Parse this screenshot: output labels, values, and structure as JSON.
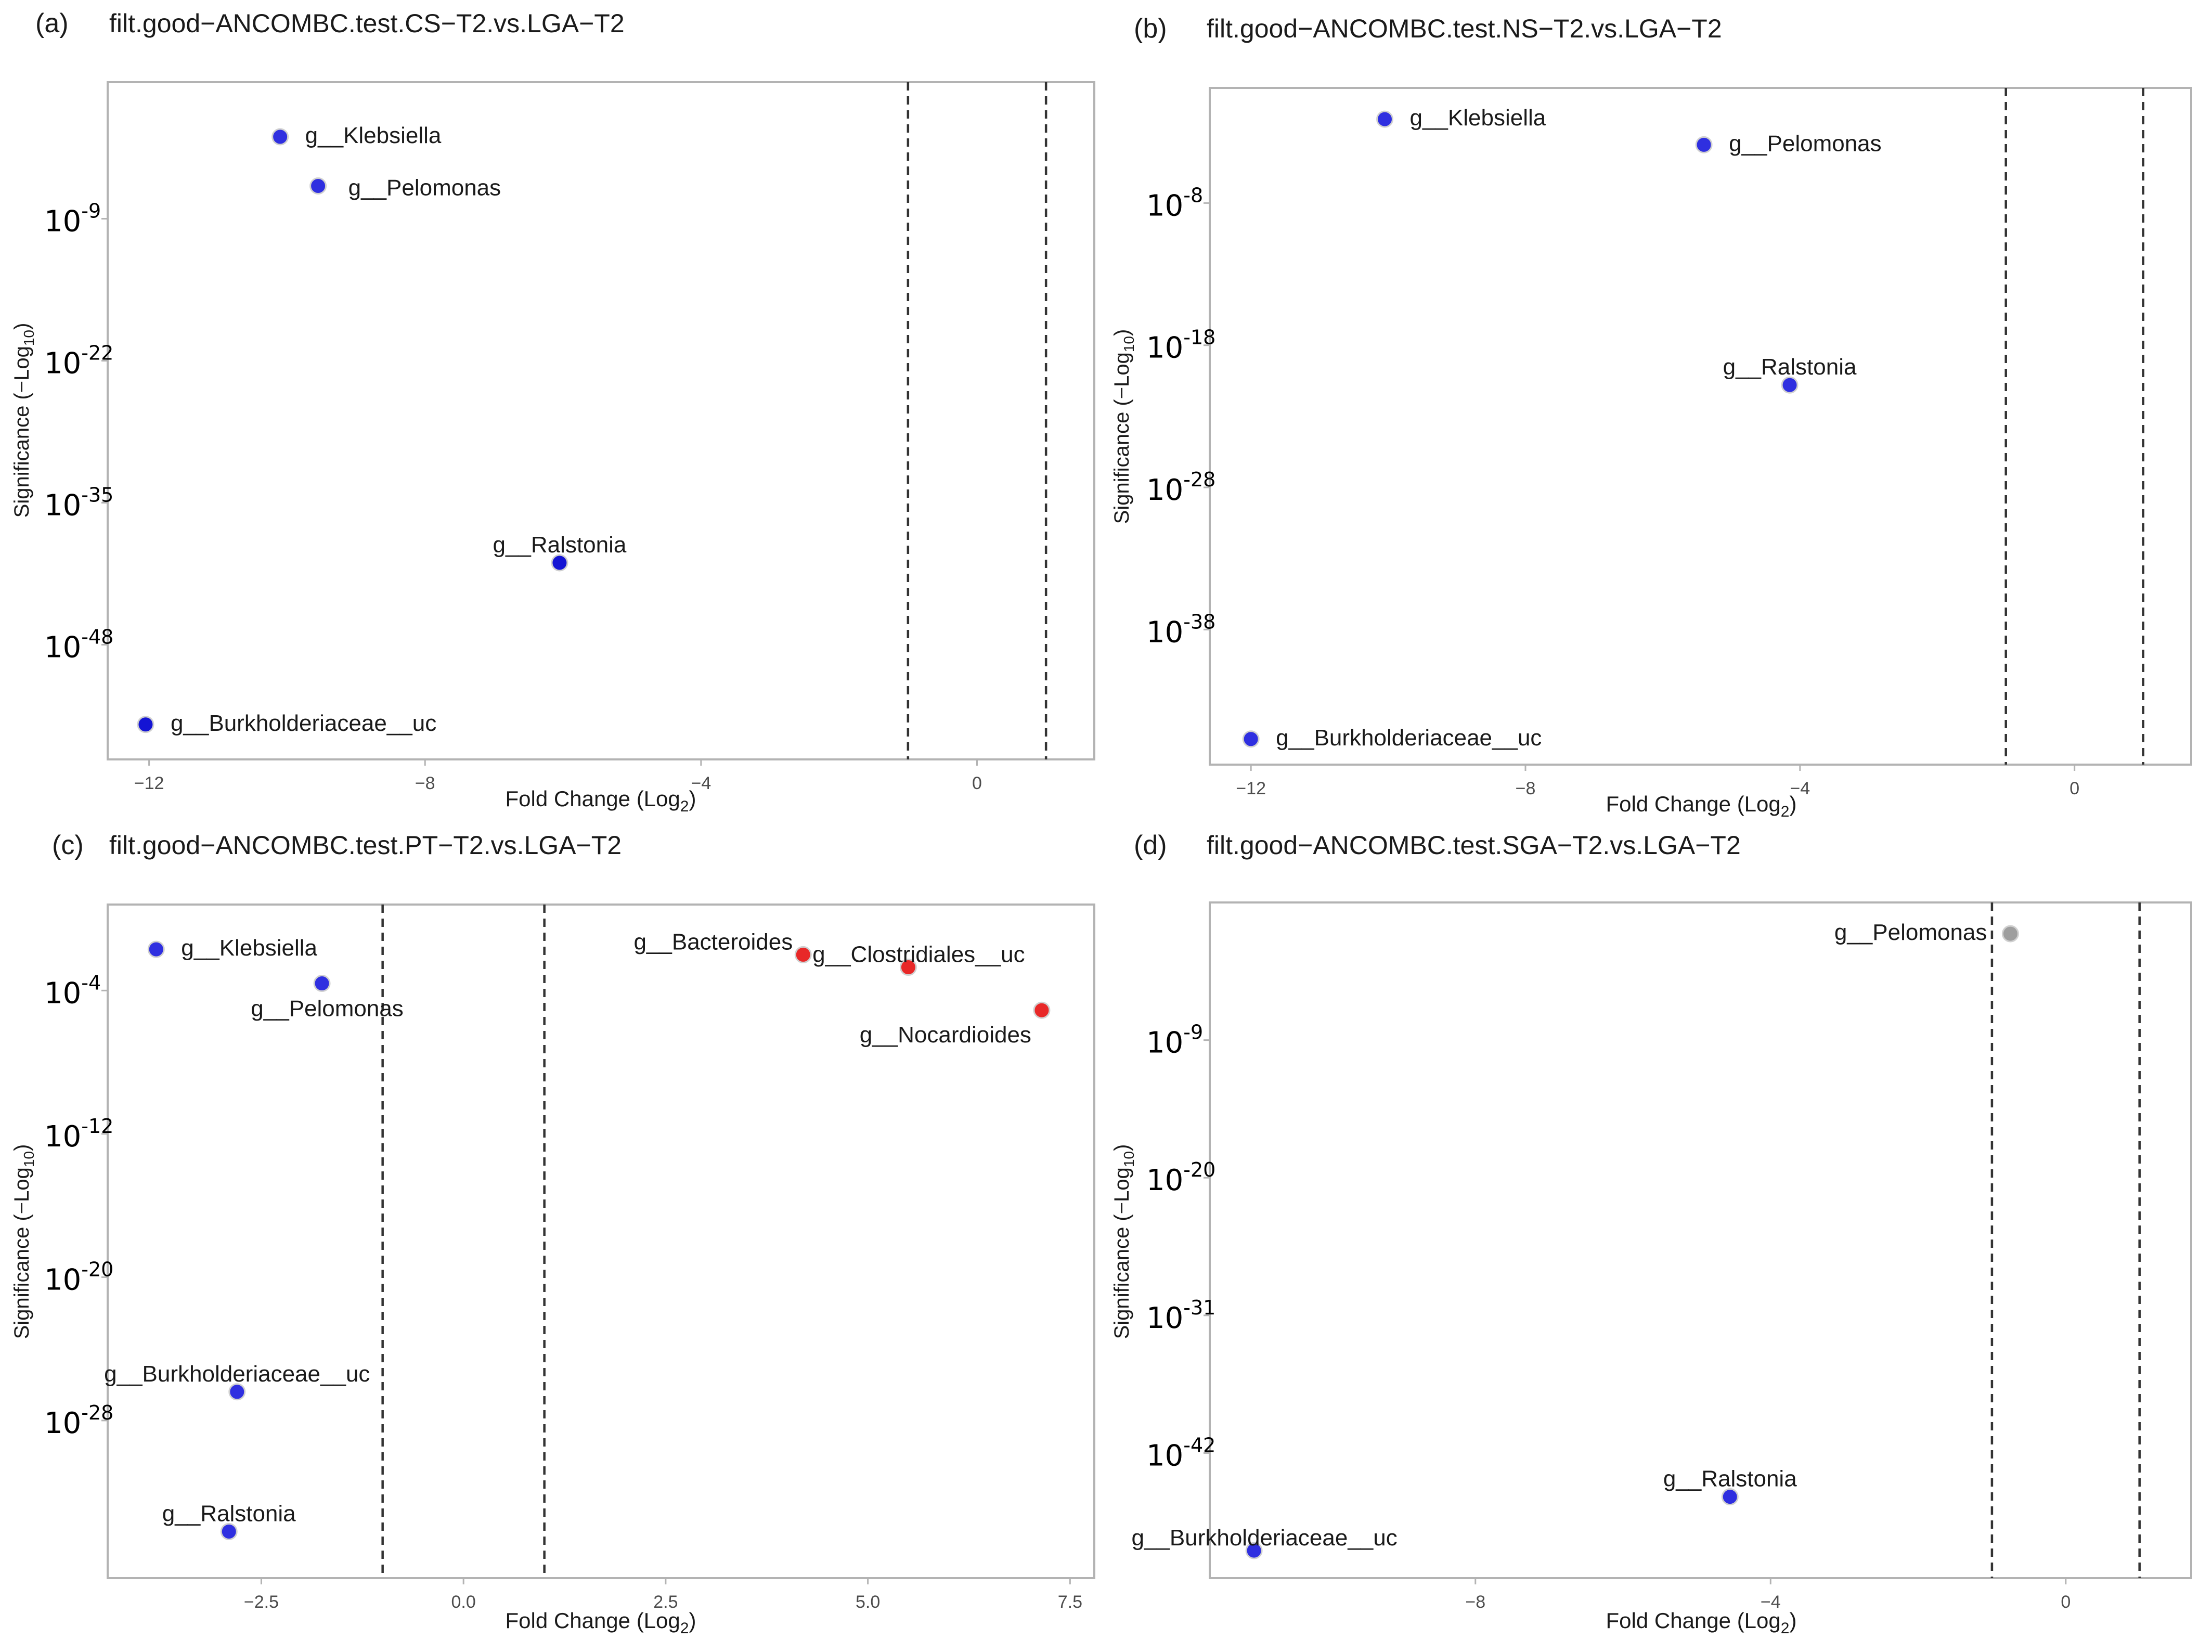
{
  "chart_data": [
    {
      "type": "scatter",
      "panel_label": "(a)",
      "title": "filt.good−ANCOMBC.test.CS−T2.vs.LGA−T2",
      "xlabel": "Fold Change (Log",
      "xlabel_sub": "2",
      "xlabel_end": ")",
      "ylabel": "Significance (−Log",
      "ylabel_sub": "10",
      "ylabel_end": ")",
      "xlim": [
        -12.6,
        1.7
      ],
      "ylim": [
        -58.5,
        3.5
      ],
      "x_ticks": [
        {
          "value": -12,
          "label": "−12"
        },
        {
          "value": -8,
          "label": "−8"
        },
        {
          "value": -4,
          "label": "−4"
        },
        {
          "value": 0,
          "label": "0"
        }
      ],
      "y_ticks": [
        {
          "value": -9,
          "base": "10",
          "exp": "-9"
        },
        {
          "value": -22,
          "base": "10",
          "exp": "-22"
        },
        {
          "value": -35,
          "base": "10",
          "exp": "-35"
        },
        {
          "value": -48,
          "base": "10",
          "exp": "-48"
        }
      ],
      "vlines": [
        -1,
        1
      ],
      "points": [
        {
          "label": "g__Klebsiella",
          "x": -10.1,
          "y": -1.5,
          "color": "#2f2fe0",
          "label_pos": "right"
        },
        {
          "label": "g__Pelomonas",
          "x": -9.55,
          "y": -6.0,
          "color": "#2f2fe0",
          "label_pos": "right-below"
        },
        {
          "label": "g__Ralstonia",
          "x": -6.05,
          "y": -40.5,
          "color": "#1414d4",
          "label_pos": "above"
        },
        {
          "label": "g__Burkholderiaceae__uc",
          "x": -12.05,
          "y": -55.3,
          "color": "#1414d4",
          "label_pos": "right"
        }
      ]
    },
    {
      "type": "scatter",
      "panel_label": "(b)",
      "title": "filt.good−ANCOMBC.test.NS−T2.vs.LGA−T2",
      "xlabel": "Fold Change (Log",
      "xlabel_sub": "2",
      "xlabel_end": ")",
      "ylabel": "Significance (−Log",
      "ylabel_sub": "10",
      "ylabel_end": ")",
      "xlim": [
        -12.6,
        1.7
      ],
      "ylim": [
        -47.5,
        0.1
      ],
      "x_ticks": [
        {
          "value": -12,
          "label": "−12"
        },
        {
          "value": -8,
          "label": "−8"
        },
        {
          "value": -4,
          "label": "−4"
        },
        {
          "value": 0,
          "label": "0"
        }
      ],
      "y_ticks": [
        {
          "value": -8,
          "base": "10",
          "exp": "-8"
        },
        {
          "value": -18,
          "base": "10",
          "exp": "-18"
        },
        {
          "value": -28,
          "base": "10",
          "exp": "-28"
        },
        {
          "value": -38,
          "base": "10",
          "exp": "-38"
        }
      ],
      "vlines": [
        -1,
        1
      ],
      "points": [
        {
          "label": "g__Klebsiella",
          "x": -10.05,
          "y": -2.1,
          "color": "#2f2fe0",
          "label_pos": "right"
        },
        {
          "label": "g__Pelomonas",
          "x": -5.4,
          "y": -3.9,
          "color": "#2f2fe0",
          "label_pos": "right"
        },
        {
          "label": "g__Ralstonia",
          "x": -4.15,
          "y": -20.8,
          "color": "#2f2fe0",
          "label_pos": "above"
        },
        {
          "label": "g__Burkholderiaceae__uc",
          "x": -12.0,
          "y": -45.7,
          "color": "#2f2fe0",
          "label_pos": "right"
        }
      ]
    },
    {
      "type": "scatter",
      "panel_label": "(c)",
      "title": "filt.good−ANCOMBC.test.PT−T2.vs.LGA−T2",
      "xlabel": "Fold Change (Log",
      "xlabel_sub": "2",
      "xlabel_end": ")",
      "ylabel": "Significance (−Log",
      "ylabel_sub": "10",
      "ylabel_end": ")",
      "xlim": [
        -4.4,
        7.8
      ],
      "ylim": [
        -36.8,
        0.8
      ],
      "x_ticks": [
        {
          "value": -2.5,
          "label": "−2.5"
        },
        {
          "value": 0.0,
          "label": "0.0"
        },
        {
          "value": 2.5,
          "label": "2.5"
        },
        {
          "value": 5.0,
          "label": "5.0"
        },
        {
          "value": 7.5,
          "label": "7.5"
        }
      ],
      "y_ticks": [
        {
          "value": -4,
          "base": "10",
          "exp": "-4"
        },
        {
          "value": -12,
          "base": "10",
          "exp": "-12"
        },
        {
          "value": -20,
          "base": "10",
          "exp": "-20"
        },
        {
          "value": -28,
          "base": "10",
          "exp": "-28"
        }
      ],
      "vlines": [
        -1,
        1
      ],
      "points": [
        {
          "label": "g__Klebsiella",
          "x": -3.8,
          "y": -1.7,
          "color": "#2f2fe0",
          "label_pos": "right"
        },
        {
          "label": "g__Pelomonas",
          "x": -1.75,
          "y": -3.6,
          "color": "#2f2fe0",
          "label_pos": "below"
        },
        {
          "label": "g__Burkholderiaceae__uc",
          "x": -2.8,
          "y": -26.4,
          "color": "#2f2fe0",
          "label_pos": "above"
        },
        {
          "label": "g__Ralstonia",
          "x": -2.9,
          "y": -34.2,
          "color": "#2f2fe0",
          "label_pos": "above"
        },
        {
          "label": "g__Bacteroides",
          "x": 4.2,
          "y": -2.0,
          "color": "#e82828",
          "label_pos": "above-left"
        },
        {
          "label": "g__Clostridiales__uc",
          "x": 5.5,
          "y": -2.7,
          "color": "#e82828",
          "label_pos": "above-right"
        },
        {
          "label": "g__Nocardioides",
          "x": 7.15,
          "y": -5.1,
          "color": "#e82828",
          "label_pos": "below-left"
        }
      ]
    },
    {
      "type": "scatter",
      "panel_label": "(d)",
      "title": "filt.good−ANCOMBC.test.SGA−T2.vs.LGA−T2",
      "xlabel": "Fold Change (Log",
      "xlabel_sub": "2",
      "xlabel_end": ")",
      "ylabel": "Significance (−Log",
      "ylabel_sub": "10",
      "ylabel_end": ")",
      "xlim": [
        -11.6,
        1.7
      ],
      "ylim": [
        -52.0,
        2.0
      ],
      "x_ticks": [
        {
          "value": -8,
          "label": "−8"
        },
        {
          "value": -4,
          "label": "−4"
        },
        {
          "value": 0,
          "label": "0"
        }
      ],
      "y_ticks": [
        {
          "value": -9,
          "base": "10",
          "exp": "-9"
        },
        {
          "value": -20,
          "base": "10",
          "exp": "-20"
        },
        {
          "value": -31,
          "base": "10",
          "exp": "-31"
        },
        {
          "value": -42,
          "base": "10",
          "exp": "-42"
        }
      ],
      "vlines": [
        -1,
        1
      ],
      "points": [
        {
          "label": "g__Pelomonas",
          "x": -0.75,
          "y": -0.5,
          "color": "#9e9e9e",
          "label_pos": "left"
        },
        {
          "label": "g__Ralstonia",
          "x": -4.55,
          "y": -45.5,
          "color": "#2f2fe0",
          "label_pos": "above"
        },
        {
          "label": "g__Burkholderiaceae__uc",
          "x": -11.0,
          "y": -49.8,
          "color": "#2f2fe0",
          "label_pos": "above-right"
        }
      ]
    }
  ]
}
